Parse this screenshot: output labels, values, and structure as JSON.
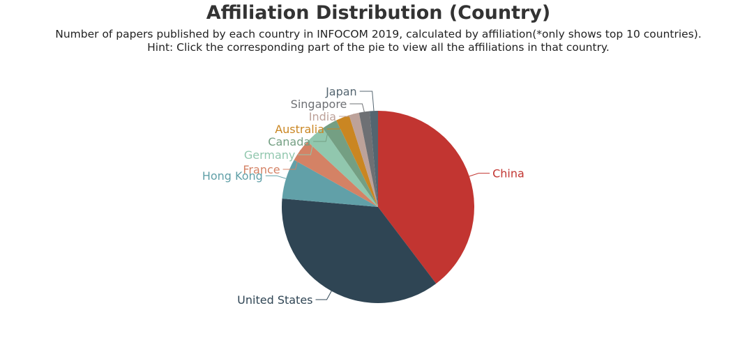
{
  "title": "Affiliation Distribution (Country)",
  "subtitle_line1": "Number of papers published by each country in INFOCOM 2019, calculated by affiliation(*only shows top 10 countries).",
  "subtitle_line2": "Hint: Click the corresponding part of the pie to view all the affiliations in that country.",
  "chart_data": {
    "type": "pie",
    "title": "Affiliation Distribution (Country)",
    "start": "12 o'clock, clockwise",
    "slices": [
      {
        "label": "China",
        "value": 40.0,
        "color": "#c23531"
      },
      {
        "label": "United States",
        "value": 37.0,
        "color": "#2f4554"
      },
      {
        "label": "Hong Kong",
        "value": 6.8,
        "color": "#61a0a8"
      },
      {
        "label": "France",
        "value": 3.8,
        "color": "#d48265"
      },
      {
        "label": "Germany",
        "value": 3.4,
        "color": "#91c7ae"
      },
      {
        "label": "Canada",
        "value": 2.6,
        "color": "#749f83"
      },
      {
        "label": "Australia",
        "value": 2.3,
        "color": "#ca8622"
      },
      {
        "label": "India",
        "value": 1.7,
        "color": "#bda29a"
      },
      {
        "label": "Singapore",
        "value": 1.8,
        "color": "#6e7074"
      },
      {
        "label": "Japan",
        "value": 1.4,
        "color": "#546570"
      }
    ]
  }
}
